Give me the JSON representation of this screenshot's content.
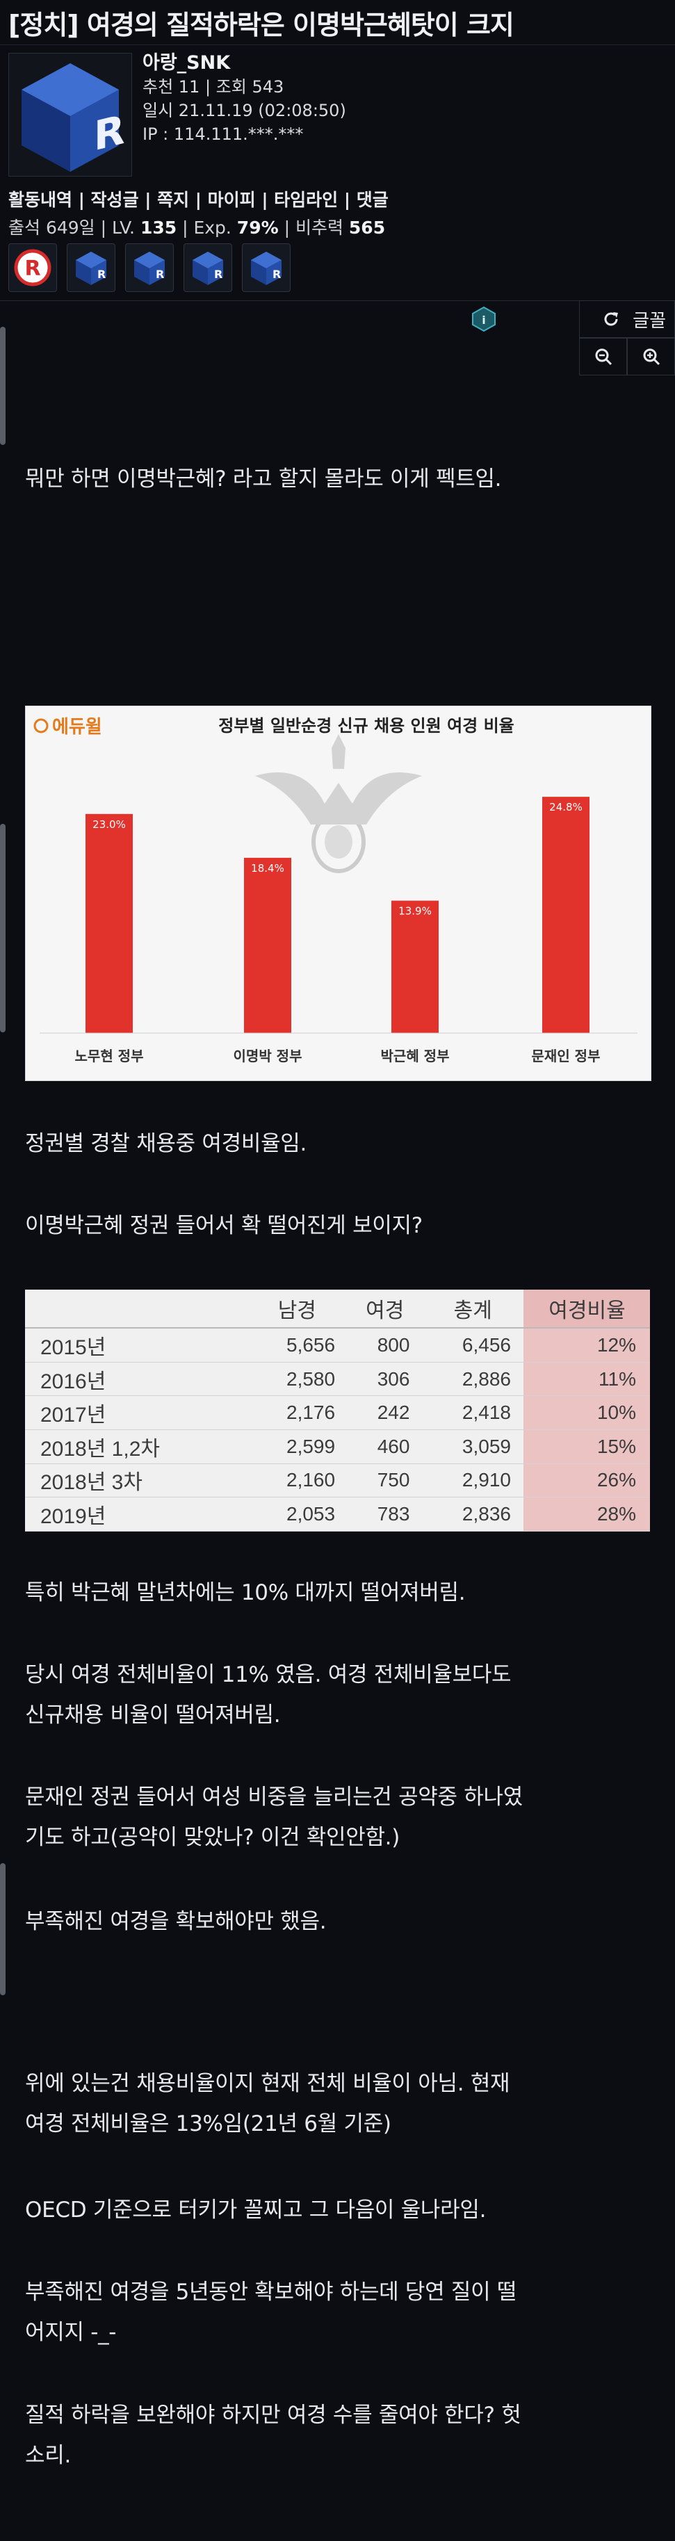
{
  "post": {
    "title": "[정치] 여경의 질적하락은 이명박근혜탓이 크지"
  },
  "author": {
    "nickname": "아랑_SNK",
    "recommend_views": "추천 11 | 조회 543",
    "datetime": "일시 21.11.19 (02:08:50)",
    "ip": "IP : 114.111.***.***",
    "menu": "활동내역 | 작성글 | 쪽지 | 마이피 | 타임라인 | 댓글",
    "attendance_prefix": "출석 649일 | LV. ",
    "level": "135",
    "exp_prefix": " | Exp. ",
    "exp": "79%",
    "power_prefix": " | 비추력 ",
    "power": "565"
  },
  "tools": {
    "font_label": "글꼴"
  },
  "body": {
    "p1": "뭐만 하면 이명박근혜? 라고 할지 몰라도 이게 펙트임.",
    "p2": "정권별 경찰 채용중 여경비율임.",
    "p3": "이명박근혜 정권 들어서 확 떨어진게 보이지?",
    "p4": "특히 박근혜 말년차에는 10% 대까지 떨어져버림.",
    "p5a": "당시 여경 전체비율이 11% 였음. 여경 전체비율보다도",
    "p5b": "신규채용 비율이 떨어져버림.",
    "p6a": "문재인 정권 들어서 여성 비중을 늘리는건 공약중 하나였",
    "p6b": "기도 하고(공약이 맞았나? 이건 확인안함.)",
    "p7": "부족해진 여경을 확보해야만 했음.",
    "p8a": "위에 있는건 채용비율이지 현재 전체 비율이 아님. 현재",
    "p8b": "여경 전체비율은 13%임(21년 6월 기준)",
    "p9": "OECD 기준으로 터키가 꼴찌고 그 다음이 울나라임.",
    "p10a": "부족해진 여경을 5년동안 확보해야 하는데 당연 질이 떨",
    "p10b": "어지지 -_-",
    "p11a": "질적 하락을 보완해야 하지만 여경 수를 줄여야 한다? 헛",
    "p11b": "소리."
  },
  "chart_data": [
    {
      "type": "bar",
      "title": "정부별 일반순경 신규 채용 인원 여경 비율",
      "brand": "에듀윌",
      "categories": [
        "노무현 정부",
        "이명박 정부",
        "박근혜 정부",
        "문재인 정부"
      ],
      "values": [
        23.0,
        18.4,
        13.9,
        24.8
      ],
      "value_labels": [
        "23.0%",
        "18.4%",
        "13.9%",
        "24.8%"
      ],
      "bar_color": "#e2322c",
      "ylim": [
        0,
        27
      ],
      "grid": false
    },
    {
      "type": "table",
      "columns": [
        "",
        "남경",
        "여경",
        "총계",
        "여경비율"
      ],
      "rows": [
        [
          "2015년",
          "5,656",
          "800",
          "6,456",
          "12%"
        ],
        [
          "2016년",
          "2,580",
          "306",
          "2,886",
          "11%"
        ],
        [
          "2017년",
          "2,176",
          "242",
          "2,418",
          "10%"
        ],
        [
          "2018년 1,2차",
          "2,599",
          "460",
          "3,059",
          "15%"
        ],
        [
          "2018년 3차",
          "2,160",
          "750",
          "2,910",
          "26%"
        ],
        [
          "2019년",
          "2,053",
          "783",
          "2,836",
          "28%"
        ]
      ],
      "highlight_color": "#ecc3c3"
    }
  ]
}
